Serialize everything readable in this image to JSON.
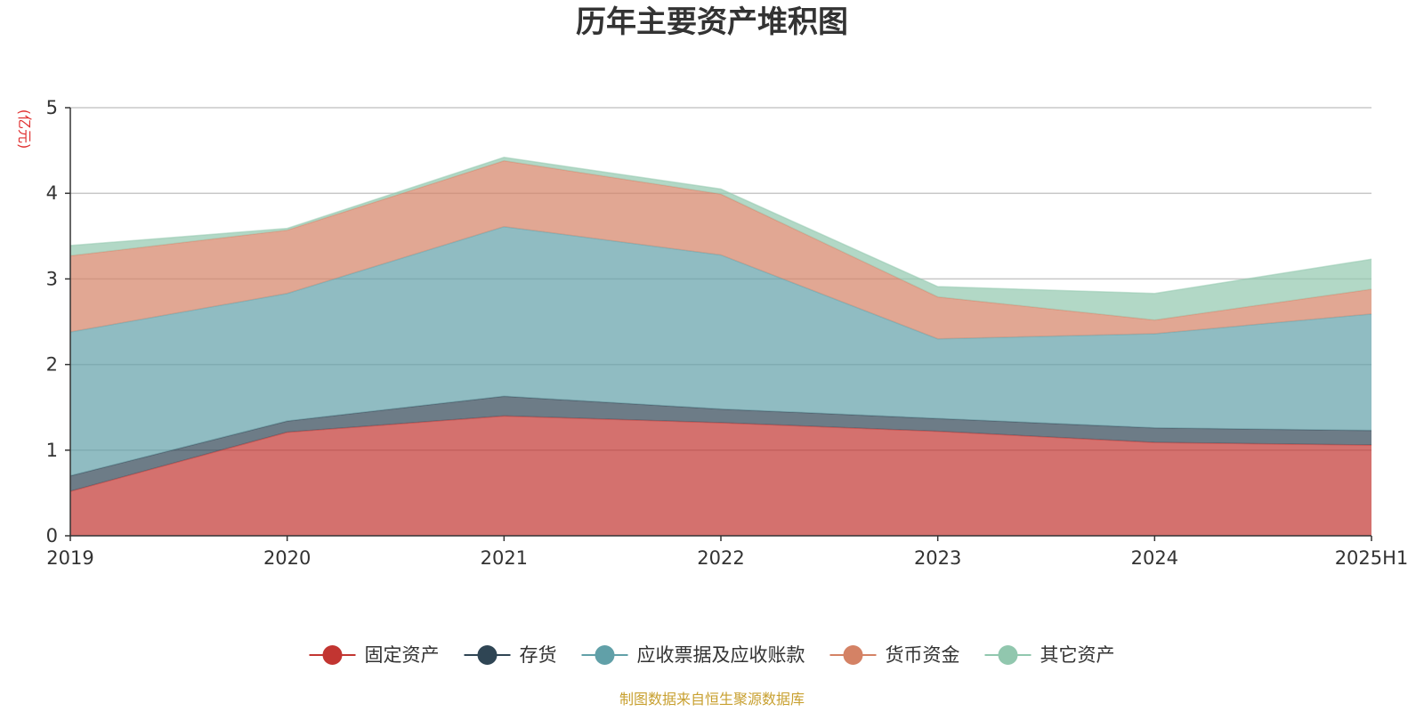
{
  "chart_data": {
    "type": "area",
    "stacked": true,
    "title": "历年主要资产堆积图",
    "ylabel": "(亿元)",
    "xlabel": "",
    "categories": [
      "2019",
      "2020",
      "2021",
      "2022",
      "2023",
      "2024",
      "2025H1"
    ],
    "ylim": [
      0,
      5
    ],
    "yticks": [
      0,
      1,
      2,
      3,
      4,
      5
    ],
    "grid": true,
    "legend_position": "bottom-center",
    "series": [
      {
        "name": "固定资产",
        "color": "#c23531",
        "values": [
          0.52,
          1.21,
          1.4,
          1.32,
          1.22,
          1.09,
          1.06
        ]
      },
      {
        "name": "存货",
        "color": "#2f4554",
        "values": [
          0.18,
          0.13,
          0.23,
          0.16,
          0.15,
          0.17,
          0.17
        ]
      },
      {
        "name": "应收票据及应收账款",
        "color": "#61a0a8",
        "values": [
          1.68,
          1.49,
          1.98,
          1.8,
          0.93,
          1.1,
          1.36
        ]
      },
      {
        "name": "货币资金",
        "color": "#d48265",
        "values": [
          0.89,
          0.74,
          0.77,
          0.71,
          0.49,
          0.16,
          0.29
        ]
      },
      {
        "name": "其它资产",
        "color": "#91c7ae",
        "values": [
          0.12,
          0.02,
          0.04,
          0.06,
          0.12,
          0.31,
          0.35
        ]
      }
    ]
  },
  "source_note": "制图数据来自恒生聚源数据库"
}
